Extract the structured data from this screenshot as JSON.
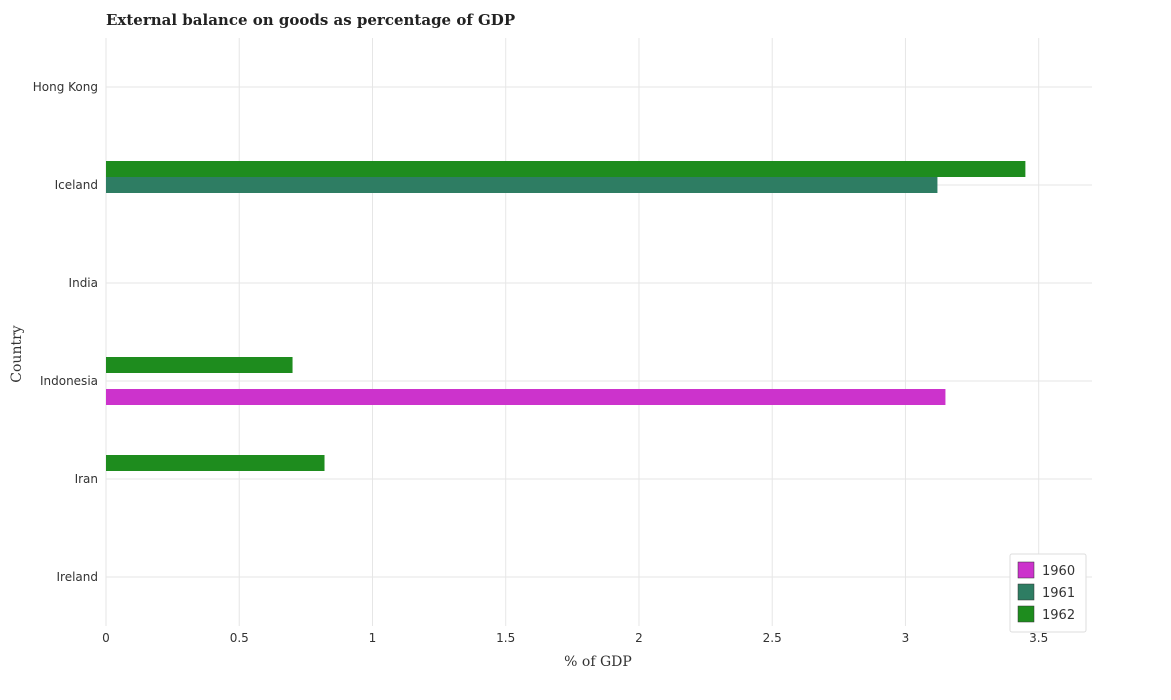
{
  "chart_data": {
    "type": "bar",
    "orientation": "horizontal",
    "title": "External balance on goods as percentage of GDP",
    "xlabel": "% of GDP",
    "ylabel": "Country",
    "categories": [
      "Hong Kong",
      "Iceland",
      "India",
      "Indonesia",
      "Iran",
      "Ireland"
    ],
    "series": [
      {
        "name": "1960",
        "color": "#cc33cc",
        "values": [
          0,
          0,
          0,
          3.15,
          0,
          0
        ]
      },
      {
        "name": "1961",
        "color": "#2e7d63",
        "values": [
          0,
          3.12,
          0,
          0,
          0,
          0
        ]
      },
      {
        "name": "1962",
        "color": "#1e8c1e",
        "values": [
          0,
          3.45,
          0,
          0.7,
          0.82,
          0
        ]
      }
    ],
    "xlim": [
      0,
      3.7
    ],
    "xticks": [
      0,
      0.5,
      1,
      1.5,
      2,
      2.5,
      3,
      3.5
    ],
    "xtick_labels": [
      "0",
      "0.5",
      "1",
      "1.5",
      "2",
      "2.5",
      "3",
      "3.5"
    ],
    "grid": true,
    "legend_position": "bottom-right"
  }
}
